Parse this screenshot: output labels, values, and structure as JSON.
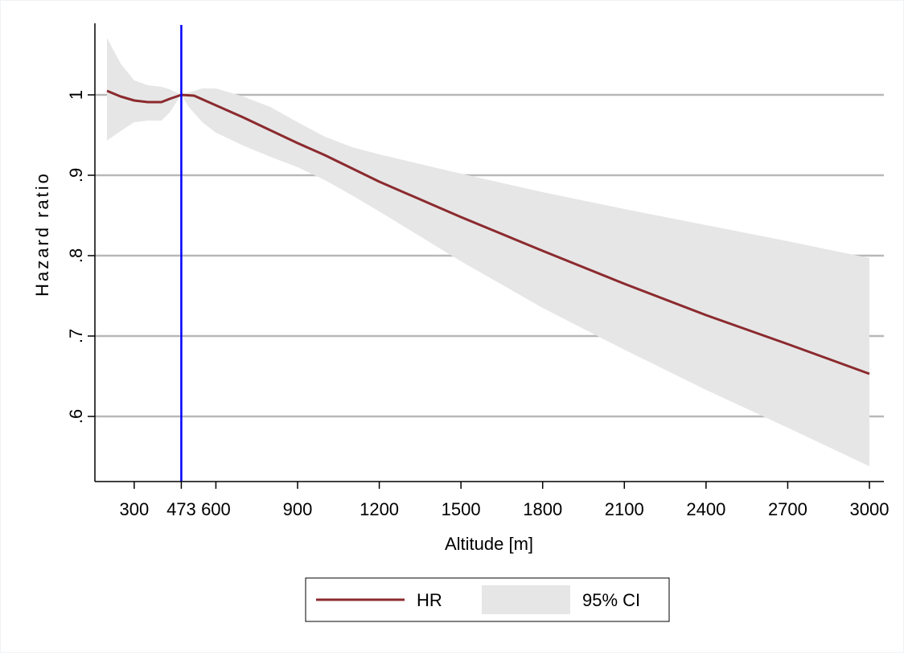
{
  "colors": {
    "hr_line": "#8b2a2e",
    "ci_band": "#e6e6e6",
    "reference_line": "#0000ff",
    "grid": "#b8b8b8",
    "axis": "#000000",
    "background": "#ffffff"
  },
  "chart_data": {
    "type": "line",
    "title": "",
    "xlabel": "Altitude [m]",
    "ylabel": "Hazard ratio",
    "xlim": [
      200,
      3000
    ],
    "ylim": [
      0.53,
      1.09
    ],
    "grid": true,
    "legend_position": "bottom",
    "x_ticks": [
      300,
      473,
      600,
      900,
      1200,
      1500,
      1800,
      2100,
      2400,
      2700,
      3000
    ],
    "x_tick_labels": [
      "300",
      "473",
      "600",
      "900",
      "1200",
      "1500",
      "1800",
      "2100",
      "2400",
      "2700",
      "3000"
    ],
    "y_ticks": [
      0.6,
      0.7,
      0.8,
      0.9,
      1.0
    ],
    "y_tick_labels": [
      ".6",
      ".7",
      ".8",
      ".9",
      "1"
    ],
    "reference_x": 473,
    "legend": [
      {
        "label": "HR",
        "kind": "line"
      },
      {
        "label": "95% CI",
        "kind": "area"
      }
    ],
    "series": [
      {
        "name": "HR",
        "x": [
          200,
          250,
          300,
          350,
          400,
          430,
          473,
          520,
          600,
          700,
          800,
          900,
          1000,
          1200,
          1500,
          1800,
          2100,
          2400,
          2700,
          3000
        ],
        "y": [
          1.005,
          0.998,
          0.993,
          0.991,
          0.991,
          0.995,
          1.0,
          0.999,
          0.987,
          0.972,
          0.956,
          0.94,
          0.925,
          0.892,
          0.848,
          0.806,
          0.765,
          0.726,
          0.69,
          0.653
        ]
      }
    ],
    "ci": {
      "name": "95% CI",
      "x": [
        200,
        250,
        300,
        350,
        400,
        430,
        473,
        500,
        550,
        600,
        700,
        800,
        900,
        1000,
        1100,
        1200,
        1500,
        1800,
        2100,
        2400,
        2700,
        3000
      ],
      "lower": [
        0.943,
        0.955,
        0.966,
        0.968,
        0.968,
        0.978,
        1.0,
        0.985,
        0.966,
        0.953,
        0.937,
        0.923,
        0.91,
        0.894,
        0.875,
        0.855,
        0.793,
        0.735,
        0.683,
        0.633,
        0.586,
        0.538
      ],
      "upper": [
        1.071,
        1.039,
        1.018,
        1.012,
        1.01,
        1.007,
        1.0,
        1.003,
        1.008,
        1.008,
        0.998,
        0.985,
        0.966,
        0.948,
        0.935,
        0.926,
        0.902,
        0.879,
        0.858,
        0.838,
        0.818,
        0.797
      ]
    }
  }
}
